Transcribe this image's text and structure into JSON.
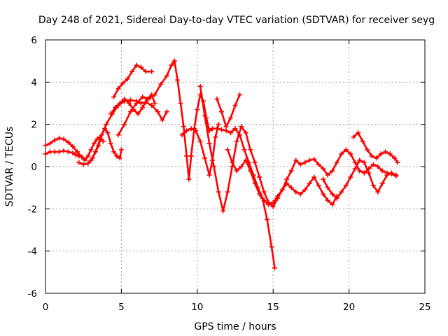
{
  "chart_data": {
    "type": "scatter",
    "title": "Day 248 of 2021, Sidereal Day-to-day VTEC variation (SDTVAR) for receiver seyg",
    "xlabel": "GPS time / hours",
    "ylabel": "SDTVAR / TECUs",
    "xlim": [
      0,
      25
    ],
    "ylim": [
      -6,
      6
    ],
    "xticks": [
      0,
      5,
      10,
      15,
      20,
      25
    ],
    "yticks": [
      -6,
      -4,
      -2,
      0,
      2,
      4,
      6
    ],
    "grid": true,
    "marker": "+",
    "color": "#ff0000",
    "series": [
      {
        "x": [
          0.0,
          0.3,
          0.6,
          0.9,
          1.2,
          1.5,
          1.8,
          2.0,
          2.2,
          2.4
        ],
        "y": [
          0.6,
          0.7,
          0.7,
          0.7,
          0.75,
          0.7,
          0.65,
          0.55,
          0.5,
          0.45
        ]
      },
      {
        "x": [
          0.0,
          0.3,
          0.6,
          0.9,
          1.2,
          1.5,
          1.8,
          2.1,
          2.4,
          2.6,
          2.8,
          3.0,
          3.2,
          3.4,
          3.6,
          3.8
        ],
        "y": [
          1.0,
          1.1,
          1.25,
          1.35,
          1.3,
          1.15,
          0.95,
          0.7,
          0.45,
          0.3,
          0.5,
          0.8,
          1.1,
          1.3,
          1.4,
          1.2
        ]
      },
      {
        "x": [
          2.2,
          2.5,
          2.8,
          3.1,
          3.3,
          3.5,
          3.7,
          3.9,
          4.1,
          4.3,
          4.5,
          4.7,
          4.9,
          5.0
        ],
        "y": [
          0.2,
          0.1,
          0.15,
          0.4,
          0.7,
          1.0,
          1.5,
          1.8,
          1.6,
          1.1,
          0.7,
          0.5,
          0.4,
          0.8
        ]
      },
      {
        "x": [
          3.0,
          3.3,
          3.6,
          4.0,
          4.4,
          4.8,
          5.2,
          5.6,
          6.0,
          6.3,
          6.6,
          7.0,
          7.4,
          7.7,
          8.0
        ],
        "y": [
          0.3,
          0.7,
          1.3,
          2.0,
          2.5,
          2.9,
          3.1,
          3.15,
          3.1,
          3.0,
          3.05,
          2.9,
          2.6,
          2.2,
          2.6
        ]
      },
      {
        "x": [
          4.3,
          4.6,
          4.9,
          5.2,
          5.5,
          5.8,
          6.1,
          6.4,
          6.7,
          7.0,
          7.2
        ],
        "y": [
          2.5,
          2.8,
          3.0,
          3.2,
          3.0,
          2.7,
          2.5,
          2.8,
          3.2,
          3.4,
          3.0
        ]
      },
      {
        "x": [
          4.5,
          4.8,
          5.1,
          5.4,
          5.7,
          6.0,
          6.3,
          6.6,
          7.0
        ],
        "y": [
          3.3,
          3.7,
          3.95,
          4.15,
          4.5,
          4.8,
          4.7,
          4.5,
          4.5
        ]
      },
      {
        "x": [
          4.8,
          5.2,
          5.6,
          6.0,
          6.4,
          6.8,
          7.2,
          7.6,
          8.0,
          8.3,
          8.5
        ],
        "y": [
          1.5,
          2.0,
          2.6,
          3.0,
          3.3,
          3.2,
          3.4,
          3.9,
          4.3,
          4.8,
          5.0
        ]
      },
      {
        "x": [
          8.5,
          8.7,
          8.9,
          9.1,
          9.3,
          9.45,
          9.6,
          9.8,
          10.0,
          10.2,
          10.4,
          10.6,
          10.8,
          11.0,
          11.3,
          11.6,
          11.9,
          12.2,
          12.5,
          12.8,
          13.1,
          13.4,
          13.7,
          14.0,
          14.3,
          14.6,
          14.9,
          15.1
        ],
        "y": [
          5.0,
          4.1,
          3.0,
          1.9,
          0.5,
          -0.6,
          0.5,
          1.8,
          2.7,
          3.4,
          3.1,
          2.3,
          1.7,
          1.8,
          1.8,
          1.75,
          1.7,
          1.6,
          1.8,
          1.5,
          0.8,
          0.2,
          -0.4,
          -1.0,
          -1.5,
          -2.5,
          -3.8,
          -4.8
        ]
      },
      {
        "x": [
          9.0,
          9.3,
          9.6,
          9.9,
          10.2,
          10.5,
          10.8,
          11.0,
          11.2,
          11.4
        ],
        "y": [
          1.5,
          1.7,
          1.8,
          1.7,
          1.2,
          0.4,
          -0.4,
          0.3,
          1.4,
          2.0
        ]
      },
      {
        "x": [
          10.2,
          10.5,
          10.8,
          11.1,
          11.4,
          11.7,
          12.0,
          12.3,
          12.6,
          12.9,
          13.2,
          13.5,
          13.8,
          14.1,
          14.4,
          14.7,
          15.0,
          15.3,
          15.6,
          15.9,
          16.2,
          16.5,
          16.8,
          17.1,
          17.4,
          17.7,
          18.0,
          18.3,
          18.6,
          18.9,
          19.2,
          19.5,
          19.8,
          20.1,
          20.4,
          20.7,
          21.0,
          21.3,
          21.6,
          21.9,
          22.2,
          22.5,
          22.8,
          23.1
        ],
        "y": [
          3.8,
          2.4,
          1.1,
          0.0,
          -1.2,
          -2.1,
          -1.2,
          0.0,
          1.2,
          1.9,
          1.6,
          0.8,
          0.2,
          -0.5,
          -1.2,
          -1.7,
          -1.9,
          -1.5,
          -1.1,
          -0.6,
          -0.2,
          0.3,
          0.1,
          0.2,
          0.3,
          0.35,
          0.1,
          -0.1,
          -0.4,
          -0.2,
          0.2,
          0.6,
          0.8,
          0.6,
          0.2,
          -0.2,
          -0.3,
          -0.1,
          0.1,
          0.0,
          -0.2,
          -0.3,
          -0.35,
          -0.45
        ]
      },
      {
        "x": [
          11.3,
          11.6,
          11.9,
          12.2,
          12.5,
          12.8
        ],
        "y": [
          3.2,
          2.6,
          1.9,
          2.3,
          2.9,
          3.4
        ]
      },
      {
        "x": [
          12.0,
          12.3,
          12.6,
          12.9,
          13.2,
          13.5,
          13.8,
          14.1,
          14.4,
          14.7,
          15.0,
          15.3,
          15.6,
          15.9,
          16.2,
          16.5,
          16.8,
          17.1,
          17.4,
          17.7,
          18.0,
          18.3,
          18.6,
          18.9,
          19.2
        ],
        "y": [
          0.8,
          0.2,
          -0.2,
          0.0,
          0.3,
          -0.2,
          -0.8,
          -1.3,
          -1.6,
          -1.8,
          -1.7,
          -1.4,
          -1.1,
          -0.8,
          -1.0,
          -1.2,
          -1.3,
          -1.1,
          -0.8,
          -0.5,
          -0.9,
          -1.3,
          -1.6,
          -1.8,
          -1.4
        ]
      },
      {
        "x": [
          18.3,
          18.6,
          18.9,
          19.2,
          19.5,
          19.8,
          20.1,
          20.4,
          20.7,
          21.0,
          21.3,
          21.6,
          21.9,
          22.2,
          22.5,
          22.8,
          23.1
        ],
        "y": [
          -0.6,
          -1.0,
          -1.3,
          -1.5,
          -1.2,
          -0.9,
          -0.5,
          -0.1,
          0.3,
          0.2,
          -0.3,
          -0.9,
          -1.2,
          -0.8,
          -0.4,
          -0.3,
          -0.4
        ]
      },
      {
        "x": [
          20.3,
          20.6,
          20.9,
          21.2,
          21.5,
          21.8,
          22.1,
          22.4,
          22.7,
          23.0,
          23.2
        ],
        "y": [
          1.4,
          1.6,
          1.2,
          0.8,
          0.5,
          0.4,
          0.6,
          0.7,
          0.6,
          0.4,
          0.2
        ]
      }
    ]
  }
}
